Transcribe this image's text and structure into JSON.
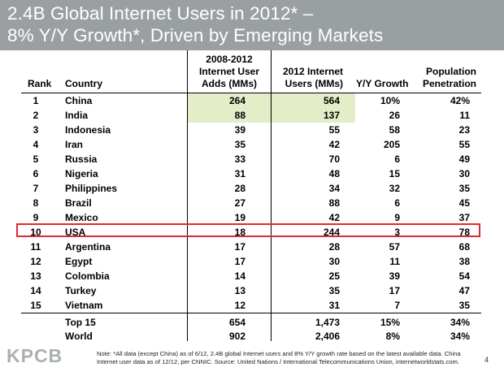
{
  "title": {
    "line1": "2.4B Global Internet Users in 2012* –",
    "line2": "8% Y/Y Growth*, Driven by Emerging Markets"
  },
  "table": {
    "headers": {
      "rank": "Rank",
      "country": "Country",
      "adds": [
        "2008-2012",
        "Internet User",
        "Adds (MMs)"
      ],
      "users": [
        "2012 Internet",
        "Users (MMs)"
      ],
      "growth": "Y/Y Growth",
      "penetration": [
        "Population",
        "Penetration"
      ]
    },
    "rows": [
      {
        "rank": "1",
        "country": "China",
        "adds": "264",
        "users": "564",
        "growth": "10%",
        "pen": "42%"
      },
      {
        "rank": "2",
        "country": "India",
        "adds": "88",
        "users": "137",
        "growth": "26",
        "pen": "11"
      },
      {
        "rank": "3",
        "country": "Indonesia",
        "adds": "39",
        "users": "55",
        "growth": "58",
        "pen": "23"
      },
      {
        "rank": "4",
        "country": "Iran",
        "adds": "35",
        "users": "42",
        "growth": "205",
        "pen": "55"
      },
      {
        "rank": "5",
        "country": "Russia",
        "adds": "33",
        "users": "70",
        "growth": "6",
        "pen": "49"
      },
      {
        "rank": "6",
        "country": "Nigeria",
        "adds": "31",
        "users": "48",
        "growth": "15",
        "pen": "30"
      },
      {
        "rank": "7",
        "country": "Philippines",
        "adds": "28",
        "users": "34",
        "growth": "32",
        "pen": "35"
      },
      {
        "rank": "8",
        "country": "Brazil",
        "adds": "27",
        "users": "88",
        "growth": "6",
        "pen": "45"
      },
      {
        "rank": "9",
        "country": "Mexico",
        "adds": "19",
        "users": "42",
        "growth": "9",
        "pen": "37"
      },
      {
        "rank": "10",
        "country": "USA",
        "adds": "18",
        "users": "244",
        "growth": "3",
        "pen": "78"
      },
      {
        "rank": "11",
        "country": "Argentina",
        "adds": "17",
        "users": "28",
        "growth": "57",
        "pen": "68"
      },
      {
        "rank": "12",
        "country": "Egypt",
        "adds": "17",
        "users": "30",
        "growth": "11",
        "pen": "38"
      },
      {
        "rank": "13",
        "country": "Colombia",
        "adds": "14",
        "users": "25",
        "growth": "39",
        "pen": "54"
      },
      {
        "rank": "14",
        "country": "Turkey",
        "adds": "13",
        "users": "35",
        "growth": "17",
        "pen": "47"
      },
      {
        "rank": "15",
        "country": "Vietnam",
        "adds": "12",
        "users": "31",
        "growth": "7",
        "pen": "35"
      }
    ],
    "totals": [
      {
        "label": "Top 15",
        "adds": "654",
        "users": "1,473",
        "growth": "15%",
        "pen": "34%"
      },
      {
        "label": "World",
        "adds": "902",
        "users": "2,406",
        "growth": "8%",
        "pen": "34%"
      }
    ]
  },
  "colors": {
    "title_bar": "#9aa0a2",
    "highlight": "#e3eec8",
    "usa_box": "#e0282e"
  },
  "footer": {
    "logo": "KPCB",
    "note": "Note: *All data (except China) as of 6/12, 2.4B global Internet users and 8% Y/Y growth rate based on the latest available data. China Internet user data as of 12/12, per CNNIC. Source: United Nations / International Telecommunications Union, internetworldstats.com.",
    "page": "4"
  }
}
